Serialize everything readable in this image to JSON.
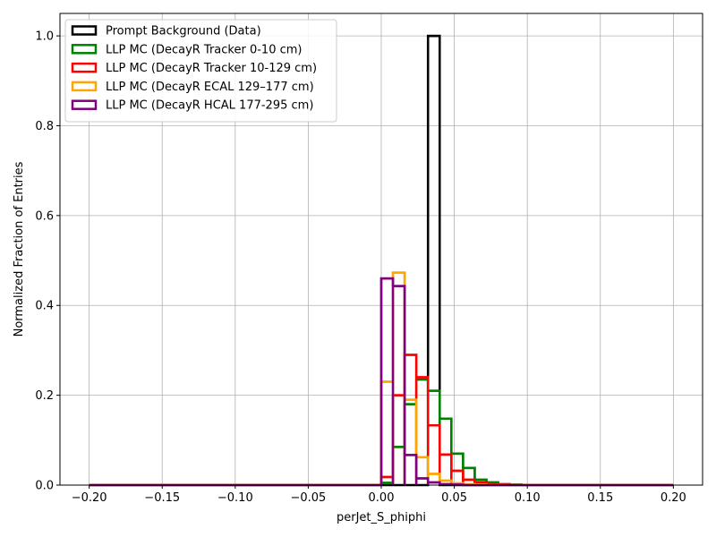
{
  "chart_data": {
    "type": "histogram-step",
    "title": "",
    "xlabel": "perJet_S_phiphi",
    "ylabel": "Normalized Fraction of Entries",
    "xlim": [
      -0.22,
      0.22
    ],
    "ylim": [
      0,
      1.05
    ],
    "grid": true,
    "legend_position": "top-left",
    "x_ticks": [
      "−0.20",
      "−0.15",
      "−0.10",
      "−0.05",
      "0.00",
      "0.05",
      "0.10",
      "0.15",
      "0.20"
    ],
    "x_tick_values": [
      -0.2,
      -0.15,
      -0.1,
      -0.05,
      0.0,
      0.05,
      0.1,
      0.15,
      0.2
    ],
    "y_ticks": [
      "0.0",
      "0.2",
      "0.4",
      "0.6",
      "0.8",
      "1.0"
    ],
    "y_tick_values": [
      0.0,
      0.2,
      0.4,
      0.6,
      0.8,
      1.0
    ],
    "bin_edges": [
      -0.2,
      -0.192,
      -0.184,
      -0.176,
      -0.168,
      -0.16,
      -0.152,
      -0.144,
      -0.136,
      -0.128,
      -0.12,
      -0.112,
      -0.104,
      -0.096,
      -0.088,
      -0.08,
      -0.072,
      -0.064,
      -0.056,
      -0.048,
      -0.04,
      -0.032,
      -0.024,
      -0.016,
      -0.008,
      0.0,
      0.008,
      0.016,
      0.024,
      0.032,
      0.04,
      0.048,
      0.056,
      0.064,
      0.072,
      0.08,
      0.088,
      0.096,
      0.104,
      0.112,
      0.12,
      0.128,
      0.136,
      0.144,
      0.152,
      0.16,
      0.168,
      0.176,
      0.184,
      0.192,
      0.2
    ],
    "series": [
      {
        "name": "Prompt Background (Data)",
        "color": "#000000",
        "values": [
          0,
          0,
          0,
          0,
          0,
          0,
          0,
          0,
          0,
          0,
          0,
          0,
          0,
          0,
          0,
          0,
          0,
          0,
          0,
          0,
          0,
          0,
          0,
          0,
          0,
          0,
          0,
          0,
          0,
          1.0,
          0,
          0,
          0,
          0,
          0,
          0,
          0,
          0,
          0,
          0,
          0,
          0,
          0,
          0,
          0,
          0,
          0,
          0,
          0,
          0
        ]
      },
      {
        "name": "LLP MC (DecayR Tracker 0-10 cm)",
        "color": "#008000",
        "values": [
          0,
          0,
          0,
          0,
          0,
          0,
          0,
          0,
          0,
          0,
          0,
          0,
          0,
          0,
          0,
          0,
          0,
          0,
          0,
          0,
          0,
          0,
          0,
          0,
          0,
          0.005,
          0.085,
          0.18,
          0.235,
          0.21,
          0.148,
          0.07,
          0.038,
          0.012,
          0.006,
          0.002,
          0.001,
          0,
          0,
          0,
          0,
          0,
          0,
          0,
          0,
          0,
          0,
          0,
          0,
          0
        ]
      },
      {
        "name": "LLP MC (DecayR Tracker 10-129 cm)",
        "color": "#ff0000",
        "values": [
          0,
          0,
          0,
          0,
          0,
          0,
          0,
          0,
          0,
          0,
          0,
          0,
          0,
          0,
          0,
          0,
          0,
          0,
          0,
          0,
          0,
          0,
          0,
          0,
          0,
          0.018,
          0.2,
          0.29,
          0.24,
          0.133,
          0.068,
          0.032,
          0.012,
          0.006,
          0.002,
          0.001,
          0,
          0,
          0,
          0,
          0,
          0,
          0,
          0,
          0,
          0,
          0,
          0,
          0,
          0
        ]
      },
      {
        "name": "LLP MC (DecayR ECAL 129–177 cm)",
        "color": "#ffa500",
        "values": [
          0,
          0,
          0,
          0,
          0,
          0,
          0,
          0,
          0,
          0,
          0,
          0,
          0,
          0,
          0,
          0,
          0,
          0,
          0,
          0,
          0,
          0,
          0,
          0,
          0,
          0.23,
          0.473,
          0.19,
          0.062,
          0.025,
          0.01,
          0.004,
          0.002,
          0.001,
          0,
          0,
          0,
          0,
          0,
          0,
          0,
          0,
          0,
          0,
          0,
          0,
          0,
          0,
          0,
          0
        ]
      },
      {
        "name": "LLP MC (DecayR HCAL 177-295 cm)",
        "color": "#800080",
        "values": [
          0,
          0,
          0,
          0,
          0,
          0,
          0,
          0,
          0,
          0,
          0,
          0,
          0,
          0,
          0,
          0,
          0,
          0,
          0,
          0,
          0,
          0,
          0,
          0,
          0,
          0.46,
          0.443,
          0.067,
          0.015,
          0.006,
          0.002,
          0.001,
          0,
          0,
          0,
          0,
          0,
          0,
          0,
          0,
          0,
          0,
          0,
          0,
          0,
          0,
          0,
          0,
          0,
          0
        ]
      }
    ]
  }
}
